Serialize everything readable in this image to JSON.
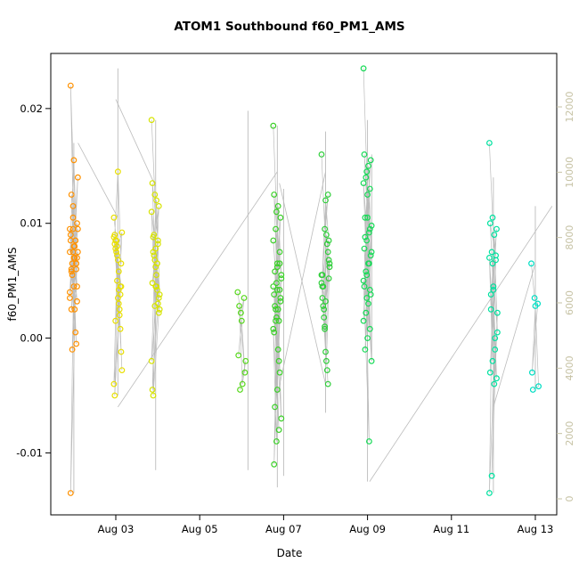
{
  "chart_data": {
    "type": "scatter",
    "title": "ATOM1 Southbound f60_PM1_AMS",
    "xlabel": "Date",
    "ylabel": "f60_PM1_AMS",
    "x_lim": [
      1.45,
      13.51
    ],
    "y_lim": [
      -0.0154,
      0.0248
    ],
    "x_ticks": [
      {
        "day": 3,
        "label": "Aug 03"
      },
      {
        "day": 5,
        "label": "Aug 05"
      },
      {
        "day": 7,
        "label": "Aug 07"
      },
      {
        "day": 9,
        "label": "Aug 09"
      },
      {
        "day": 11,
        "label": "Aug 11"
      },
      {
        "day": 13,
        "label": "Aug 13"
      }
    ],
    "y_ticks_left": [
      {
        "v": -0.01,
        "label": "-0.01"
      },
      {
        "v": 0,
        "label": "0.00"
      },
      {
        "v": 0.01,
        "label": "0.01"
      },
      {
        "v": 0.02,
        "label": "0.02"
      }
    ],
    "right_axis": {
      "lim": [
        -491,
        13636
      ],
      "ticks": [
        0,
        2000,
        4000,
        6000,
        8000,
        10000,
        12000
      ],
      "color": "#c6c2a4"
    },
    "line_color": "#bcbcbc",
    "clusters": [
      {
        "day": 2.0,
        "color": "#FF9100",
        "y": [
          0.0075,
          0.0105,
          0.0065,
          0.022,
          0.008,
          0.0045,
          0.0125,
          0.007,
          0.0095,
          0.0055,
          0.0085,
          0.0035,
          0.0115,
          0.006,
          0.009,
          0.0155,
          0.007,
          0.0025,
          0.008,
          0.014,
          0.0065,
          0.0005,
          0.0095,
          0.0075,
          -0.0005,
          0.0085,
          0.0045,
          0.01,
          0.006,
          0.0025,
          0.0075,
          -0.001,
          0.0085,
          0.004,
          0.0095,
          0.0065,
          -0.0135,
          0.007,
          0.0032,
          0.0058
        ]
      },
      {
        "day": 3.05,
        "color": "#E8DF00",
        "y": [
          0.0105,
          0.008,
          0.0045,
          0.009,
          0.0145,
          0.0065,
          0.0085,
          0.003,
          0.0092,
          0.0075,
          0.0025,
          0.0088,
          0.005,
          0.0008,
          0.0082,
          0.0035,
          -0.0012,
          0.0078,
          0.0042,
          -0.0028,
          0.0085,
          0.002,
          -0.004,
          0.0072,
          0.0038,
          -0.005,
          0.0068,
          0.0045,
          0.0015,
          0.0058
        ]
      },
      {
        "day": 3.95,
        "color": "#D6E300",
        "y": [
          0.019,
          0.0125,
          0.0085,
          0.0135,
          0.0045,
          0.0115,
          0.0075,
          0.012,
          0.0038,
          0.009,
          0.0065,
          0.011,
          0.0028,
          0.0082,
          0.0048,
          0.0078,
          0.0035,
          0.0088,
          0.0055,
          0.0025,
          0.0072,
          0.0042,
          -0.002,
          0.0068,
          0.003,
          -0.0045,
          0.0062,
          0.0022,
          -0.005,
          0.0045
        ]
      },
      {
        "day": 6.0,
        "color": "#58D81E",
        "y": [
          0.004,
          0.0022,
          0.0035,
          -0.0015,
          0.0015,
          -0.003,
          0.0028,
          -0.004,
          -0.002,
          -0.0045
        ]
      },
      {
        "day": 6.85,
        "color": "#3BD028",
        "y": [
          0.0185,
          0.011,
          0.0065,
          0.0125,
          0.0042,
          0.0105,
          0.0028,
          0.0115,
          0.0055,
          0.0095,
          0.0015,
          0.0085,
          0.0048,
          0.0075,
          0.0005,
          0.0065,
          0.0035,
          0.0058,
          -0.001,
          0.0052,
          0.0025,
          -0.002,
          0.0045,
          0.0018,
          -0.003,
          0.0038,
          -0.0045,
          0.0032,
          -0.006,
          0.0025,
          -0.007,
          0.0015,
          -0.008,
          0.0008,
          -0.009,
          0.0042,
          -0.011,
          0.0062
        ]
      },
      {
        "day": 8.0,
        "color": "#2FCE3A",
        "y": [
          0.016,
          0.0095,
          0.0125,
          0.0055,
          0.012,
          0.0085,
          0.0045,
          0.009,
          0.0065,
          0.0025,
          0.0082,
          0.0048,
          0.0008,
          0.0075,
          0.0035,
          -0.0012,
          0.0068,
          0.0028,
          -0.002,
          0.0062,
          0.0018,
          -0.0028,
          0.0055,
          0.001,
          -0.004,
          0.0045,
          0.0032,
          0.0052
        ]
      },
      {
        "day": 9.0,
        "color": "#17DA57",
        "y": [
          0.0235,
          0.0145,
          0.0095,
          0.016,
          0.0105,
          0.0155,
          0.0088,
          0.015,
          0.0075,
          0.014,
          0.0065,
          0.0135,
          0.0055,
          0.013,
          0.0045,
          0.0125,
          0.0038,
          0.0105,
          0.003,
          0.0098,
          0.0022,
          0.0092,
          0.0015,
          0.0085,
          0.0008,
          0.0078,
          0.0,
          0.0072,
          -0.001,
          0.0065,
          -0.002,
          0.0058,
          -0.009,
          0.005,
          0.0035,
          0.0042
        ]
      },
      {
        "day": 12.0,
        "color": "#00E2A0",
        "y": [
          0.017,
          0.0105,
          0.0072,
          0.01,
          0.0045,
          0.0095,
          0.0025,
          0.009,
          0.0005,
          0.0075,
          -0.001,
          0.007,
          -0.002,
          0.0068,
          -0.003,
          0.0042,
          -0.0035,
          0.0038,
          -0.004,
          0.0022,
          -0.012,
          0.0,
          -0.0135,
          0.0065
        ]
      },
      {
        "day": 13.0,
        "color": "#00DEC3",
        "y": [
          0.0065,
          0.0035,
          0.003,
          -0.003,
          0.0028,
          -0.0042,
          -0.0045
        ]
      }
    ],
    "spikes": [
      {
        "day": 2.0,
        "top": 0.017,
        "bottom": -0.0135
      },
      {
        "day": 3.05,
        "top": 0.0235,
        "bottom": -0.005
      },
      {
        "day": 3.95,
        "top": 0.019,
        "bottom": -0.0115
      },
      {
        "day": 6.15,
        "top": 0.0198,
        "bottom": -0.0115
      },
      {
        "day": 6.85,
        "top": 0.0185,
        "bottom": -0.013
      },
      {
        "day": 7.0,
        "top": 0.013,
        "bottom": -0.012
      },
      {
        "day": 8.0,
        "top": 0.018,
        "bottom": -0.0065
      },
      {
        "day": 9.0,
        "top": 0.019,
        "bottom": -0.0125
      },
      {
        "day": 9.1,
        "top": 0.016,
        "bottom": -0.002
      },
      {
        "day": 12.0,
        "top": 0.014,
        "bottom": -0.0135
      },
      {
        "day": 13.0,
        "top": 0.0115,
        "bottom": -0.0045
      }
    ],
    "segments": [
      {
        "x1": 2.1,
        "y1": 0.017,
        "x2": 3.05,
        "y2": 0.0105
      },
      {
        "x1": 3.0,
        "y1": 0.0208,
        "x2": 3.95,
        "y2": 0.0132
      },
      {
        "x1": 3.05,
        "y1": -0.006,
        "x2": 6.85,
        "y2": 0.0145
      },
      {
        "x1": 6.85,
        "y1": -0.005,
        "x2": 8.0,
        "y2": 0.0145
      },
      {
        "x1": 6.9,
        "y1": 0.0135,
        "x2": 8.0,
        "y2": -0.004
      },
      {
        "x1": 9.05,
        "y1": -0.0125,
        "x2": 13.4,
        "y2": 0.0115
      },
      {
        "x1": 12.0,
        "y1": -0.006,
        "x2": 13.0,
        "y2": 0.0065
      }
    ]
  }
}
